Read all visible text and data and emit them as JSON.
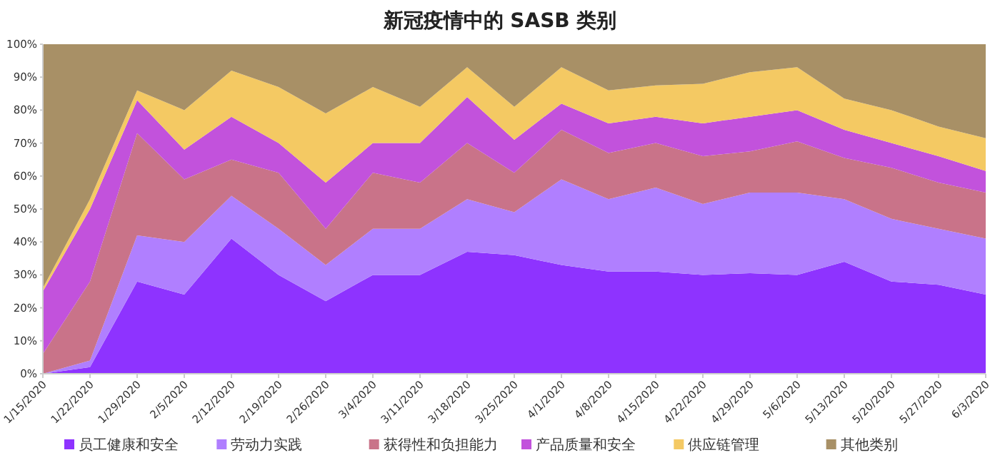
{
  "chart_data": {
    "type": "area",
    "title": "新冠疫情中的 SASB 类别",
    "stacked": true,
    "legend": "bottom",
    "categories": [
      "1/15/2020",
      "1/22/2020",
      "1/29/2020",
      "2/5/2020",
      "2/12/2020",
      "2/19/2020",
      "2/26/2020",
      "3/4/2020",
      "3/11/2020",
      "3/18/2020",
      "3/25/2020",
      "4/1/2020",
      "4/8/2020",
      "4/15/2020",
      "4/22/2020",
      "4/29/2020",
      "5/6/2020",
      "5/13/2020",
      "5/20/2020",
      "5/27/2020",
      "6/3/2020"
    ],
    "ylim": [
      0,
      100
    ],
    "yticks": [
      {
        "value": 0,
        "label": "0%"
      },
      {
        "value": 10,
        "label": "10%"
      },
      {
        "value": 20,
        "label": "20%"
      },
      {
        "value": 30,
        "label": "30%"
      },
      {
        "value": 40,
        "label": "40%"
      },
      {
        "value": 50,
        "label": "50%"
      },
      {
        "value": 60,
        "label": "60%"
      },
      {
        "value": 70,
        "label": "70%"
      },
      {
        "value": 80,
        "label": "80%"
      },
      {
        "value": 90,
        "label": "90%"
      },
      {
        "value": 100,
        "label": "100%"
      }
    ],
    "series": [
      {
        "name": "员工健康和安全",
        "color": "#8e33ff",
        "values": [
          0,
          2,
          28,
          24,
          41,
          30,
          22,
          30,
          30,
          37,
          36,
          33,
          31,
          31,
          30,
          30.5,
          30,
          34,
          28,
          27,
          24
        ]
      },
      {
        "name": "劳动力实践",
        "color": "#b07fff",
        "values": [
          0,
          2,
          14,
          16,
          13,
          14,
          11,
          14,
          14,
          16,
          13,
          26,
          22,
          25.5,
          21.5,
          24.5,
          25,
          19,
          19,
          17,
          17
        ]
      },
      {
        "name": "获得性和负担能力",
        "color": "#c97389",
        "values": [
          6,
          24,
          31,
          19,
          11,
          17,
          11,
          17,
          14,
          17,
          12,
          15,
          14,
          13.5,
          14.5,
          12.5,
          15.5,
          12.5,
          15.5,
          14,
          14
        ]
      },
      {
        "name": "产品质量和安全",
        "color": "#c252dc",
        "values": [
          19,
          22,
          10,
          9,
          13,
          9,
          14,
          9,
          12,
          14,
          10,
          8,
          9,
          8,
          10,
          10.5,
          9.5,
          8.5,
          7.5,
          8,
          6.5
        ]
      },
      {
        "name": "供应链管理",
        "color": "#f4c963",
        "values": [
          1,
          3,
          3,
          12,
          14,
          17,
          21,
          17,
          11,
          9,
          10,
          11,
          10,
          9.5,
          12,
          13.5,
          13,
          9.5,
          10,
          9,
          10
        ]
      },
      {
        "name": "其他类别",
        "color": "#a89066",
        "values": [
          74,
          47,
          14,
          20,
          8,
          13,
          21,
          13,
          19,
          7,
          19,
          7,
          14,
          12.5,
          12,
          8.5,
          7,
          16.5,
          20,
          25,
          28.5
        ]
      }
    ]
  }
}
